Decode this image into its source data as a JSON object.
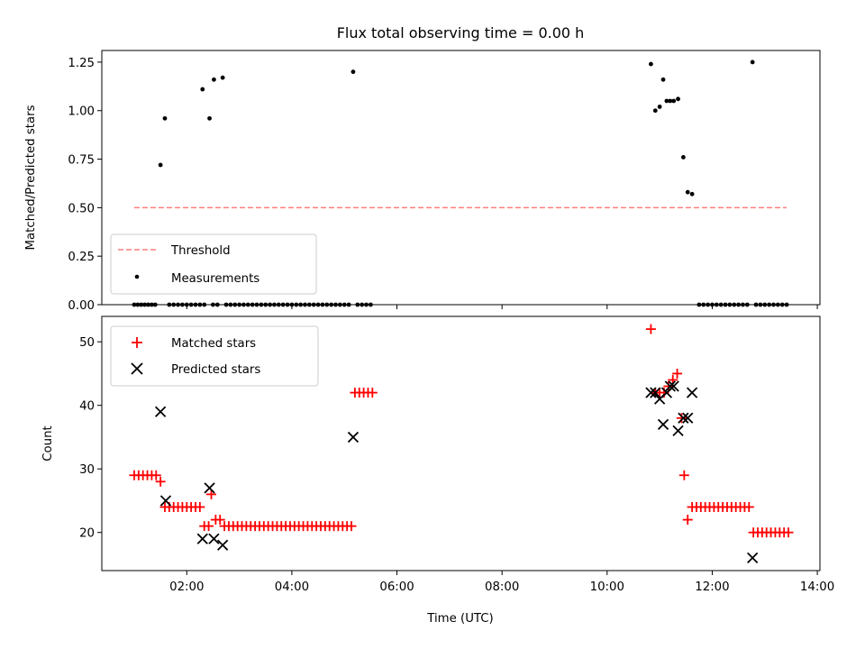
{
  "chart_data": [
    {
      "type": "scatter",
      "title": "Flux total observing time = 0.00 h",
      "xlabel": "",
      "ylabel": "Matched/Predicted stars",
      "xlim": [
        "00:23",
        "14:03"
      ],
      "ylim": [
        0,
        1.31
      ],
      "yticks": [
        "0.00",
        "0.25",
        "0.50",
        "0.75",
        "1.00",
        "1.25"
      ],
      "legend": {
        "position": "lower-left",
        "entries": [
          "Threshold",
          "Measurements"
        ]
      },
      "threshold": {
        "name": "Threshold",
        "x_start": "01:00",
        "x_end": "13:25",
        "y": 0.5,
        "color": "#ff7f7f"
      },
      "series": [
        {
          "name": "Measurements",
          "color": "#000000",
          "points": [
            [
              "01:00",
              0
            ],
            [
              "01:04",
              0
            ],
            [
              "01:08",
              0
            ],
            [
              "01:12",
              0
            ],
            [
              "01:16",
              0
            ],
            [
              "01:20",
              0
            ],
            [
              "01:24",
              0
            ],
            [
              "01:30",
              0.72
            ],
            [
              "01:35",
              0.96
            ],
            [
              "01:40",
              0
            ],
            [
              "01:45",
              0
            ],
            [
              "01:50",
              0
            ],
            [
              "01:55",
              0
            ],
            [
              "02:00",
              0
            ],
            [
              "02:05",
              0
            ],
            [
              "02:10",
              0
            ],
            [
              "02:15",
              0
            ],
            [
              "02:20",
              0
            ],
            [
              "02:18",
              1.11
            ],
            [
              "02:26",
              0.96
            ],
            [
              "02:30",
              0
            ],
            [
              "02:31",
              1.16
            ],
            [
              "02:35",
              0
            ],
            [
              "02:41",
              1.17
            ],
            [
              "02:45",
              0
            ],
            [
              "02:50",
              0
            ],
            [
              "02:55",
              0
            ],
            [
              "03:00",
              0
            ],
            [
              "03:05",
              0
            ],
            [
              "03:10",
              0
            ],
            [
              "03:15",
              0
            ],
            [
              "03:20",
              0
            ],
            [
              "03:25",
              0
            ],
            [
              "03:30",
              0
            ],
            [
              "03:35",
              0
            ],
            [
              "03:40",
              0
            ],
            [
              "03:45",
              0
            ],
            [
              "03:50",
              0
            ],
            [
              "03:55",
              0
            ],
            [
              "04:00",
              0
            ],
            [
              "04:05",
              0
            ],
            [
              "04:10",
              0
            ],
            [
              "04:15",
              0
            ],
            [
              "04:20",
              0
            ],
            [
              "04:25",
              0
            ],
            [
              "04:30",
              0
            ],
            [
              "04:35",
              0
            ],
            [
              "04:40",
              0
            ],
            [
              "04:45",
              0
            ],
            [
              "04:50",
              0
            ],
            [
              "04:55",
              0
            ],
            [
              "05:00",
              0
            ],
            [
              "05:05",
              0
            ],
            [
              "05:10",
              1.2
            ],
            [
              "05:15",
              0
            ],
            [
              "05:20",
              0
            ],
            [
              "05:25",
              0
            ],
            [
              "05:30",
              0
            ],
            [
              "10:50",
              1.24
            ],
            [
              "10:55",
              1.0
            ],
            [
              "11:00",
              1.02
            ],
            [
              "11:04",
              1.16
            ],
            [
              "11:08",
              1.05
            ],
            [
              "11:12",
              1.05
            ],
            [
              "11:16",
              1.05
            ],
            [
              "11:21",
              1.06
            ],
            [
              "11:27",
              0.76
            ],
            [
              "11:32",
              0.58
            ],
            [
              "11:37",
              0.57
            ],
            [
              "11:45",
              0
            ],
            [
              "11:50",
              0
            ],
            [
              "11:55",
              0
            ],
            [
              "12:00",
              0
            ],
            [
              "12:05",
              0
            ],
            [
              "12:10",
              0
            ],
            [
              "12:15",
              0
            ],
            [
              "12:20",
              0
            ],
            [
              "12:25",
              0
            ],
            [
              "12:30",
              0
            ],
            [
              "12:35",
              0
            ],
            [
              "12:40",
              0
            ],
            [
              "12:46",
              1.25
            ],
            [
              "12:50",
              0
            ],
            [
              "12:55",
              0
            ],
            [
              "13:00",
              0
            ],
            [
              "13:05",
              0
            ],
            [
              "13:10",
              0
            ],
            [
              "13:15",
              0
            ],
            [
              "13:20",
              0
            ],
            [
              "13:25",
              0
            ]
          ]
        }
      ]
    },
    {
      "type": "scatter",
      "title": "",
      "xlabel": "Time (UTC)",
      "ylabel": "Count",
      "xlim": [
        "00:23",
        "14:03"
      ],
      "ylim": [
        14,
        54
      ],
      "xticks": [
        "02:00",
        "04:00",
        "06:00",
        "08:00",
        "10:00",
        "12:00",
        "14:00"
      ],
      "yticks": [
        "20",
        "30",
        "40",
        "50"
      ],
      "legend": {
        "position": "top-left",
        "entries": [
          "Matched stars",
          "Predicted stars"
        ]
      },
      "series": [
        {
          "name": "Matched stars",
          "marker": "plus",
          "color": "#ff0000",
          "points": [
            [
              "01:00",
              29
            ],
            [
              "01:05",
              29
            ],
            [
              "01:10",
              29
            ],
            [
              "01:15",
              29
            ],
            [
              "01:20",
              29
            ],
            [
              "01:25",
              29
            ],
            [
              "01:30",
              28
            ],
            [
              "01:35",
              24
            ],
            [
              "01:40",
              24
            ],
            [
              "01:45",
              24
            ],
            [
              "01:50",
              24
            ],
            [
              "01:55",
              24
            ],
            [
              "02:00",
              24
            ],
            [
              "02:05",
              24
            ],
            [
              "02:10",
              24
            ],
            [
              "02:15",
              24
            ],
            [
              "02:20",
              21
            ],
            [
              "02:25",
              21
            ],
            [
              "02:28",
              26
            ],
            [
              "02:33",
              22
            ],
            [
              "02:38",
              22
            ],
            [
              "02:43",
              21
            ],
            [
              "02:48",
              21
            ],
            [
              "02:53",
              21
            ],
            [
              "02:58",
              21
            ],
            [
              "03:03",
              21
            ],
            [
              "03:08",
              21
            ],
            [
              "03:13",
              21
            ],
            [
              "03:18",
              21
            ],
            [
              "03:23",
              21
            ],
            [
              "03:28",
              21
            ],
            [
              "03:33",
              21
            ],
            [
              "03:38",
              21
            ],
            [
              "03:43",
              21
            ],
            [
              "03:48",
              21
            ],
            [
              "03:53",
              21
            ],
            [
              "03:58",
              21
            ],
            [
              "04:03",
              21
            ],
            [
              "04:08",
              21
            ],
            [
              "04:13",
              21
            ],
            [
              "04:18",
              21
            ],
            [
              "04:23",
              21
            ],
            [
              "04:28",
              21
            ],
            [
              "04:33",
              21
            ],
            [
              "04:38",
              21
            ],
            [
              "04:43",
              21
            ],
            [
              "04:48",
              21
            ],
            [
              "04:53",
              21
            ],
            [
              "04:58",
              21
            ],
            [
              "05:03",
              21
            ],
            [
              "05:08",
              21
            ],
            [
              "05:12",
              42
            ],
            [
              "05:17",
              42
            ],
            [
              "05:22",
              42
            ],
            [
              "05:27",
              42
            ],
            [
              "05:32",
              42
            ],
            [
              "10:50",
              52
            ],
            [
              "10:55",
              42
            ],
            [
              "11:00",
              42
            ],
            [
              "11:05",
              42
            ],
            [
              "11:10",
              43
            ],
            [
              "11:15",
              44
            ],
            [
              "11:20",
              45
            ],
            [
              "11:25",
              38
            ],
            [
              "11:28",
              29
            ],
            [
              "11:32",
              22
            ],
            [
              "11:37",
              24
            ],
            [
              "11:42",
              24
            ],
            [
              "11:47",
              24
            ],
            [
              "11:52",
              24
            ],
            [
              "11:57",
              24
            ],
            [
              "12:02",
              24
            ],
            [
              "12:07",
              24
            ],
            [
              "12:12",
              24
            ],
            [
              "12:17",
              24
            ],
            [
              "12:22",
              24
            ],
            [
              "12:27",
              24
            ],
            [
              "12:32",
              24
            ],
            [
              "12:37",
              24
            ],
            [
              "12:42",
              24
            ],
            [
              "12:47",
              20
            ],
            [
              "12:52",
              20
            ],
            [
              "12:57",
              20
            ],
            [
              "13:02",
              20
            ],
            [
              "13:07",
              20
            ],
            [
              "13:12",
              20
            ],
            [
              "13:17",
              20
            ],
            [
              "13:22",
              20
            ],
            [
              "13:27",
              20
            ]
          ]
        },
        {
          "name": "Predicted stars",
          "marker": "x",
          "color": "#000000",
          "points": [
            [
              "01:30",
              39
            ],
            [
              "01:36",
              25
            ],
            [
              "02:18",
              19
            ],
            [
              "02:26",
              27
            ],
            [
              "02:31",
              19
            ],
            [
              "02:41",
              18
            ],
            [
              "05:10",
              35
            ],
            [
              "10:50",
              42
            ],
            [
              "10:55",
              42
            ],
            [
              "11:00",
              41
            ],
            [
              "11:04",
              37
            ],
            [
              "11:08",
              42
            ],
            [
              "11:12",
              43
            ],
            [
              "11:16",
              43
            ],
            [
              "11:21",
              36
            ],
            [
              "11:27",
              38
            ],
            [
              "11:32",
              38
            ],
            [
              "11:37",
              42
            ],
            [
              "12:46",
              16
            ]
          ]
        }
      ]
    }
  ]
}
